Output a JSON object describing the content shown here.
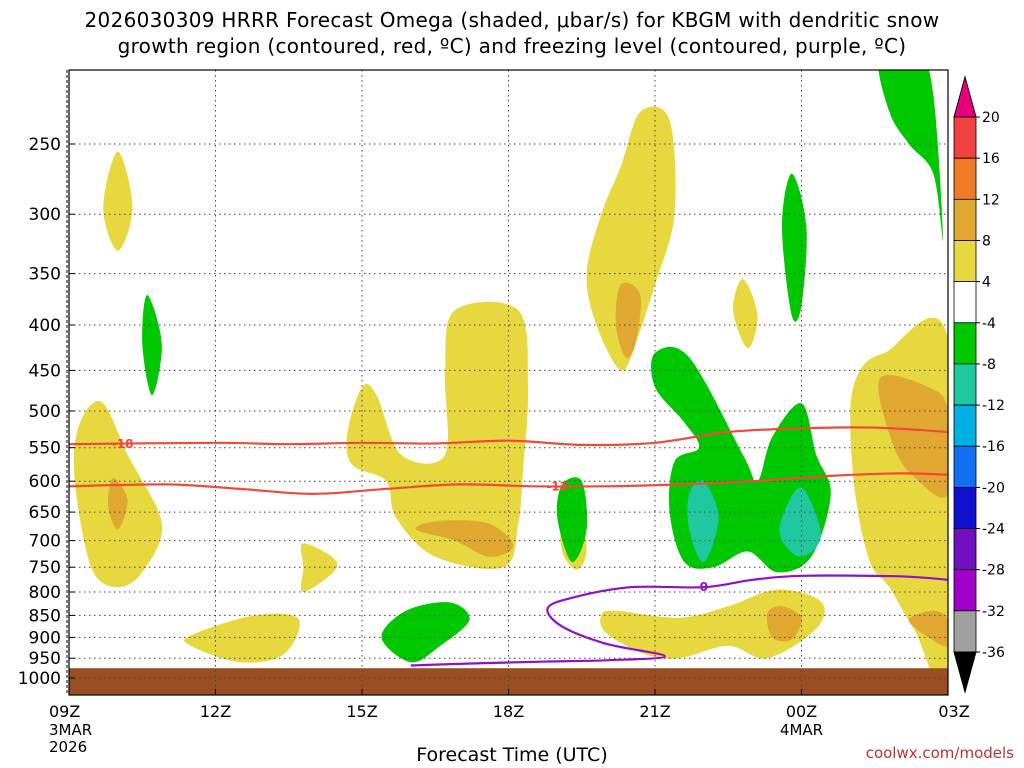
{
  "title": {
    "line1": "2026030309 HRRR Forecast Omega (shaded, μbar/s) for KBGM with dendritic snow",
    "line2": "growth region (contoured, red, ºC) and freezing level (contoured, purple, ºC)"
  },
  "credit": "coolwx.com/models",
  "chart_data": {
    "type": "contour-heatmap",
    "title": "2026030309 HRRR Forecast Omega (shaded, μbar/s) for KBGM with dendritic snow growth region (contoured, red, ºC) and freezing level (contoured, purple, ºC)",
    "xlabel": "Forecast Time (UTC)",
    "ylabel": "Pressure (hPa)",
    "x_range_hours": [
      0,
      18
    ],
    "x_ticks": [
      {
        "h": 0,
        "label": "09Z",
        "sub": [
          "3MAR",
          "2026"
        ]
      },
      {
        "h": 3,
        "label": "12Z"
      },
      {
        "h": 6,
        "label": "15Z"
      },
      {
        "h": 9,
        "label": "18Z"
      },
      {
        "h": 12,
        "label": "21Z"
      },
      {
        "h": 15,
        "label": "00Z",
        "sub": [
          "4MAR"
        ]
      },
      {
        "h": 18,
        "label": "03Z"
      }
    ],
    "y_range_hpa": [
      1050,
      200
    ],
    "y_ticks": [
      250,
      300,
      350,
      400,
      450,
      500,
      550,
      600,
      650,
      700,
      750,
      800,
      850,
      900,
      950,
      1000
    ],
    "ground_pressure_hpa": 975,
    "colorbar": {
      "labels": [
        "20",
        "16",
        "12",
        "8",
        "4",
        "-4",
        "-8",
        "-12",
        "-16",
        "-20",
        "-24",
        "-28",
        "-32",
        "-36"
      ],
      "colors": [
        "#e8007a",
        "#f04040",
        "#f07a28",
        "#e0a830",
        "#e8d840",
        "#ffffff",
        "#00c800",
        "#20c8a0",
        "#00b0e0",
        "#1070f0",
        "#1010d0",
        "#7010c0",
        "#a000c8",
        "#a0a0a0",
        "#000000"
      ]
    },
    "shaded_regions": [
      {
        "level": 4,
        "points": [
          [
            1.0,
            255
          ],
          [
            1.3,
            295
          ],
          [
            1.0,
            330
          ],
          [
            0.7,
            295
          ]
        ]
      },
      {
        "level": 4,
        "points": [
          [
            0.3,
            505
          ],
          [
            0.7,
            490
          ],
          [
            1.2,
            560
          ],
          [
            1.9,
            670
          ],
          [
            1.5,
            760
          ],
          [
            1.0,
            790
          ],
          [
            0.5,
            760
          ],
          [
            0.2,
            650
          ],
          [
            0.1,
            560
          ]
        ]
      },
      {
        "level": 8,
        "points": [
          [
            0.9,
            595
          ],
          [
            1.2,
            630
          ],
          [
            1.0,
            680
          ],
          [
            0.8,
            640
          ]
        ]
      },
      {
        "level": -4,
        "points": [
          [
            1.6,
            370
          ],
          [
            1.9,
            420
          ],
          [
            1.7,
            480
          ],
          [
            1.5,
            420
          ]
        ]
      },
      {
        "level": 4,
        "points": [
          [
            2.5,
            895
          ],
          [
            3.8,
            850
          ],
          [
            4.7,
            858
          ],
          [
            4.4,
            940
          ],
          [
            3.5,
            960
          ],
          [
            2.5,
            920
          ]
        ]
      },
      {
        "level": 4,
        "points": [
          [
            4.8,
            705
          ],
          [
            5.5,
            745
          ],
          [
            4.8,
            800
          ],
          [
            4.8,
            750
          ]
        ]
      },
      {
        "level": -4,
        "points": [
          [
            6.9,
            840
          ],
          [
            7.8,
            822
          ],
          [
            8.2,
            860
          ],
          [
            7.6,
            920
          ],
          [
            7.0,
            960
          ],
          [
            6.4,
            900
          ]
        ]
      },
      {
        "level": 4,
        "points": [
          [
            6.0,
            470
          ],
          [
            6.3,
            480
          ],
          [
            6.8,
            560
          ],
          [
            7.7,
            560
          ],
          [
            7.7,
            450
          ],
          [
            7.9,
            385
          ],
          [
            9.2,
            385
          ],
          [
            9.4,
            470
          ],
          [
            9.3,
            580
          ],
          [
            9.2,
            670
          ],
          [
            8.9,
            750
          ],
          [
            7.5,
            730
          ],
          [
            6.7,
            660
          ],
          [
            6.5,
            600
          ],
          [
            5.8,
            575
          ],
          [
            5.7,
            530
          ]
        ]
      },
      {
        "level": 8,
        "points": [
          [
            7.1,
            680
          ],
          [
            7.6,
            665
          ],
          [
            8.6,
            670
          ],
          [
            9.1,
            710
          ],
          [
            8.6,
            730
          ],
          [
            7.9,
            700
          ]
        ]
      },
      {
        "level": 4,
        "points": [
          [
            10.1,
            660
          ],
          [
            10.4,
            630
          ],
          [
            10.6,
            715
          ],
          [
            10.4,
            755
          ],
          [
            10.1,
            720
          ]
        ]
      },
      {
        "level": -4,
        "points": [
          [
            10.1,
            605
          ],
          [
            10.5,
            600
          ],
          [
            10.6,
            680
          ],
          [
            10.3,
            740
          ],
          [
            10.0,
            660
          ]
        ]
      },
      {
        "level": 4,
        "points": [
          [
            11.7,
            230
          ],
          [
            12.3,
            235
          ],
          [
            12.4,
            300
          ],
          [
            12.0,
            360
          ],
          [
            11.6,
            420
          ],
          [
            11.3,
            450
          ],
          [
            10.8,
            400
          ],
          [
            10.6,
            350
          ],
          [
            10.9,
            300
          ],
          [
            11.3,
            265
          ]
        ]
      },
      {
        "level": 8,
        "points": [
          [
            11.3,
            360
          ],
          [
            11.7,
            370
          ],
          [
            11.6,
            420
          ],
          [
            11.4,
            435
          ],
          [
            11.2,
            400
          ]
        ]
      },
      {
        "level": 4,
        "points": [
          [
            13.8,
            355
          ],
          [
            14.1,
            390
          ],
          [
            13.9,
            425
          ],
          [
            13.6,
            385
          ]
        ]
      },
      {
        "level": -4,
        "points": [
          [
            12.0,
            430
          ],
          [
            12.7,
            435
          ],
          [
            13.8,
            560
          ],
          [
            14.1,
            600
          ],
          [
            14.4,
            535
          ],
          [
            15.0,
            490
          ],
          [
            15.3,
            560
          ],
          [
            15.6,
            620
          ],
          [
            15.2,
            730
          ],
          [
            14.5,
            760
          ],
          [
            13.9,
            720
          ],
          [
            13.2,
            750
          ],
          [
            12.6,
            740
          ],
          [
            12.3,
            650
          ],
          [
            12.4,
            570
          ],
          [
            12.9,
            550
          ],
          [
            12.6,
            515
          ],
          [
            12.0,
            470
          ]
        ]
      },
      {
        "level": -8,
        "points": [
          [
            12.7,
            620
          ],
          [
            13.0,
            600
          ],
          [
            13.3,
            660
          ],
          [
            13.0,
            740
          ],
          [
            12.7,
            680
          ]
        ]
      },
      {
        "level": -8,
        "points": [
          [
            14.6,
            660
          ],
          [
            15.0,
            610
          ],
          [
            15.4,
            690
          ],
          [
            15.0,
            730
          ],
          [
            14.6,
            700
          ]
        ]
      },
      {
        "level": -4,
        "points": [
          [
            14.8,
            270
          ],
          [
            15.1,
            310
          ],
          [
            15.0,
            380
          ],
          [
            14.8,
            390
          ],
          [
            14.6,
            310
          ]
        ]
      },
      {
        "level": 4,
        "points": [
          [
            11.2,
            840
          ],
          [
            12.5,
            855
          ],
          [
            13.5,
            830
          ],
          [
            14.5,
            795
          ],
          [
            15.4,
            820
          ],
          [
            15.3,
            880
          ],
          [
            14.3,
            950
          ],
          [
            13.5,
            920
          ],
          [
            12.5,
            950
          ],
          [
            11.8,
            940
          ],
          [
            11.0,
            890
          ],
          [
            10.9,
            850
          ]
        ]
      },
      {
        "level": 8,
        "points": [
          [
            14.3,
            845
          ],
          [
            14.6,
            830
          ],
          [
            15.0,
            855
          ],
          [
            14.8,
            905
          ],
          [
            14.4,
            900
          ]
        ]
      },
      {
        "level": -4,
        "points": [
          [
            16.6,
            200
          ],
          [
            17.4,
            200
          ],
          [
            17.7,
            220
          ],
          [
            17.9,
            320
          ],
          [
            17.7,
            270
          ],
          [
            17.2,
            250
          ],
          [
            16.8,
            230
          ]
        ]
      },
      {
        "level": 4,
        "points": [
          [
            16.2,
            450
          ],
          [
            16.7,
            430
          ],
          [
            18.0,
            415
          ],
          [
            18.0,
            990
          ],
          [
            17.3,
            880
          ],
          [
            16.8,
            790
          ],
          [
            16.4,
            740
          ],
          [
            16.1,
            620
          ],
          [
            16.0,
            500
          ]
        ]
      },
      {
        "level": 8,
        "points": [
          [
            16.6,
            460
          ],
          [
            17.6,
            470
          ],
          [
            18.0,
            500
          ],
          [
            18.0,
            620
          ],
          [
            17.4,
            600
          ],
          [
            16.9,
            550
          ]
        ]
      },
      {
        "level": 8,
        "points": [
          [
            17.2,
            860
          ],
          [
            17.7,
            840
          ],
          [
            18.0,
            860
          ],
          [
            18.0,
            920
          ],
          [
            17.6,
            900
          ]
        ]
      }
    ],
    "contours": [
      {
        "name": "dgz-top",
        "value": -18,
        "color": "#f04a3a",
        "label": "-18",
        "label_at": [
          1.1,
          545
        ],
        "points": [
          [
            0,
            545
          ],
          [
            3.0,
            543
          ],
          [
            4.5,
            545
          ],
          [
            6.0,
            543
          ],
          [
            7.5,
            544
          ],
          [
            9.0,
            540
          ],
          [
            10.5,
            546
          ],
          [
            12.0,
            543
          ],
          [
            13.5,
            528
          ],
          [
            15.0,
            523
          ],
          [
            16.5,
            522
          ],
          [
            18.0,
            528
          ]
        ]
      },
      {
        "name": "dgz-bottom",
        "value": -12,
        "color": "#f04a3a",
        "label": "-12",
        "label_at": [
          10.0,
          608
        ],
        "points": [
          [
            0,
            608
          ],
          [
            2.0,
            605
          ],
          [
            3.5,
            612
          ],
          [
            5.0,
            620
          ],
          [
            6.5,
            612
          ],
          [
            8.0,
            605
          ],
          [
            9.5,
            608
          ],
          [
            11.0,
            608
          ],
          [
            12.5,
            605
          ],
          [
            14.0,
            600
          ],
          [
            15.5,
            592
          ],
          [
            17.0,
            588
          ],
          [
            18.0,
            590
          ]
        ]
      },
      {
        "name": "freezing-level",
        "value": 0,
        "color": "#9010c8",
        "label": "0",
        "label_at": [
          13.0,
          790
        ],
        "points": [
          [
            18.0,
            775
          ],
          [
            17.0,
            768
          ],
          [
            15.0,
            767
          ],
          [
            14.0,
            775
          ],
          [
            13.0,
            790
          ],
          [
            11.5,
            790
          ],
          [
            10.3,
            812
          ],
          [
            9.8,
            835
          ],
          [
            10.1,
            875
          ],
          [
            11.0,
            915
          ],
          [
            12.2,
            945
          ],
          [
            11.0,
            955
          ],
          [
            9.8,
            958
          ],
          [
            8.5,
            962
          ],
          [
            7.0,
            968
          ]
        ]
      }
    ]
  }
}
